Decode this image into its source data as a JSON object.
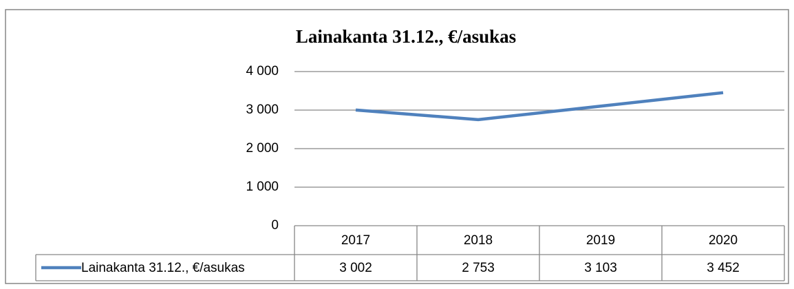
{
  "chart_data": {
    "type": "line",
    "title": "Lainakanta 31.12., €/asukas",
    "categories": [
      "2017",
      "2018",
      "2019",
      "2020"
    ],
    "series": [
      {
        "name": "Lainakanta 31.12., €/asukas",
        "color": "#4f81bd",
        "values": [
          3002,
          2753,
          3103,
          3452
        ],
        "value_labels": [
          "3 002",
          "2 753",
          "3 103",
          "3 452"
        ]
      }
    ],
    "ylim": [
      0,
      4000
    ],
    "yticks": [
      0,
      {
        "value": 1000,
        "label": "1 000"
      },
      {
        "value": 2000,
        "label": "2 000"
      },
      {
        "value": 3000,
        "label": "3 000"
      },
      {
        "value": 4000,
        "label": "4 000"
      }
    ],
    "grid": true,
    "data_table": true
  }
}
